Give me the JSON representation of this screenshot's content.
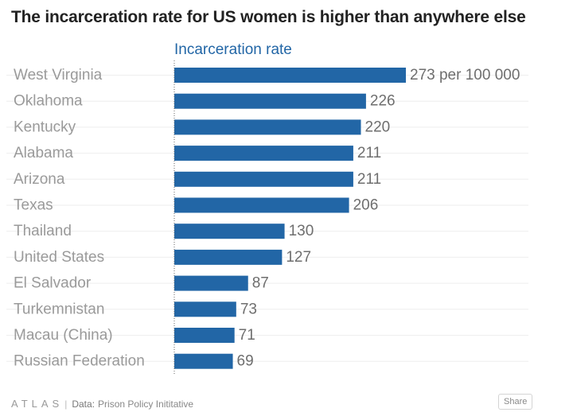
{
  "title": "The incarceration rate for US women is higher than anywhere else",
  "chart_data": {
    "type": "bar",
    "orientation": "horizontal",
    "series": [
      {
        "name": "Incarceration rate",
        "values": [
          273,
          226,
          220,
          211,
          211,
          206,
          130,
          127,
          87,
          73,
          71,
          69
        ]
      }
    ],
    "categories": [
      "West Virginia",
      "Oklahoma",
      "Kentucky",
      "Alabama",
      "Arizona",
      "Texas",
      "Thailand",
      "United States",
      "El Salvador",
      "Turkemnistan",
      "Macau (China)",
      "Russian Federation"
    ],
    "value_labels": [
      "273 per 100 000",
      "226",
      "220",
      "211",
      "211",
      "206",
      "130",
      "127",
      "87",
      "73",
      "71",
      "69"
    ],
    "xlim": [
      0,
      273
    ],
    "grid": true,
    "bar_color": "#2266a6"
  },
  "colors": {
    "category_text": "#9a9a9a",
    "value_text": "#6e6e6e",
    "series_header": "#2266a6",
    "gridline": "#eeeeee",
    "axis": "#666666"
  },
  "footer": {
    "logo": "ATLAS",
    "separator": "|",
    "data_label": "Data:",
    "source": "Prison Policy Inititative",
    "share_label": "Share"
  }
}
